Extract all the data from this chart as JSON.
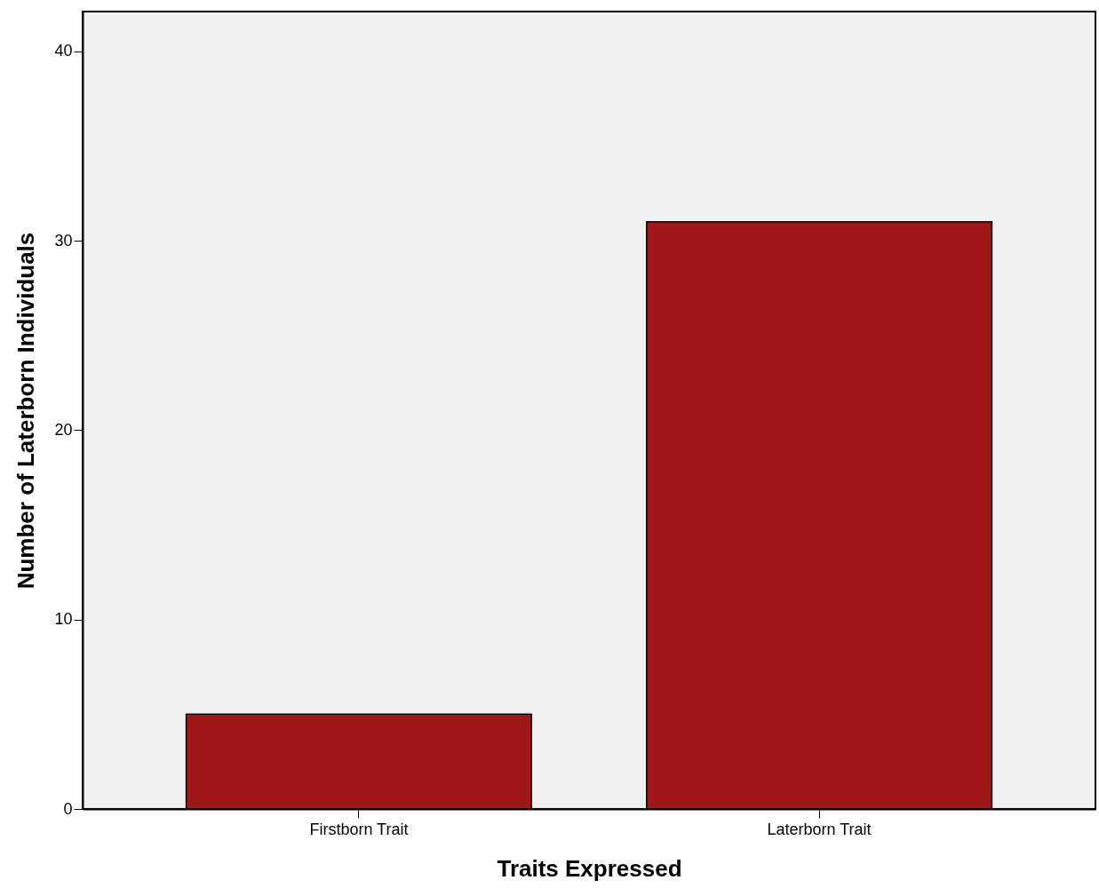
{
  "chart_data": {
    "type": "bar",
    "xlabel": "Traits Expressed",
    "ylabel": "Number of Laterborn Individuals",
    "categories": [
      "Firstborn Trait",
      "Laterborn Trait"
    ],
    "values": [
      5,
      31
    ],
    "color": "#a0171a",
    "ylim": [
      0,
      42.1
    ],
    "yticks": [
      0,
      10,
      20,
      30,
      40
    ],
    "grid": false
  }
}
